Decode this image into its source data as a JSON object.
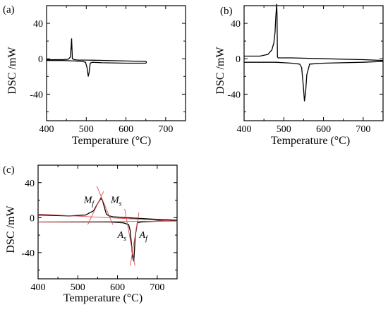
{
  "chart_data": [
    {
      "type": "line",
      "panel_label": "(a)",
      "xlabel": "Temperature (°C)",
      "ylabel": "DSC /mW",
      "xlim": [
        400,
        750
      ],
      "ylim": [
        -70,
        60
      ],
      "xticks": [
        400,
        500,
        600,
        700
      ],
      "yticks": [
        -40,
        0,
        40
      ],
      "series": [
        {
          "x": [
            400,
            440,
            455,
            460,
            462,
            463,
            465,
            470,
            480,
            500,
            550,
            600,
            650,
            652
          ],
          "y": [
            -1,
            -1,
            -0.5,
            2,
            14,
            23,
            0,
            -1,
            -1.5,
            -1.5,
            -2,
            -2.5,
            -3,
            -4
          ]
        },
        {
          "x": [
            652,
            650,
            600,
            540,
            515,
            510,
            507,
            505,
            502,
            498,
            490,
            470,
            440,
            400
          ],
          "y": [
            -4,
            -5,
            -5,
            -4.5,
            -4,
            -5,
            -16,
            -20,
            -10,
            -4,
            -3,
            -2.5,
            -2,
            -2
          ]
        }
      ],
      "annotations": []
    },
    {
      "type": "line",
      "panel_label": "(b)",
      "xlabel": "Temperature (°C)",
      "ylabel": "DSC /mW",
      "xlim": [
        400,
        750
      ],
      "ylim": [
        -70,
        60
      ],
      "xticks": [
        400,
        500,
        600,
        700
      ],
      "yticks": [
        -40,
        0,
        40
      ],
      "series": [
        {
          "x": [
            400,
            440,
            460,
            470,
            475,
            478,
            480,
            482,
            483,
            484,
            486,
            490,
            520,
            600,
            700,
            750
          ],
          "y": [
            3,
            3,
            5,
            10,
            18,
            30,
            48,
            62,
            50,
            2,
            1,
            1,
            1,
            0,
            -1,
            -2
          ]
        },
        {
          "x": [
            750,
            700,
            600,
            565,
            558,
            555,
            552,
            549,
            545,
            540,
            520,
            480,
            440,
            400
          ],
          "y": [
            -3,
            -4,
            -5,
            -6,
            -18,
            -38,
            -48,
            -30,
            -10,
            -6,
            -5,
            -4,
            -4,
            -4
          ]
        }
      ],
      "annotations": []
    },
    {
      "type": "line",
      "panel_label": "(c)",
      "xlabel": "Temperature (°C)",
      "ylabel": "DSC /mW",
      "xlim": [
        400,
        750
      ],
      "ylim": [
        -70,
        60
      ],
      "xticks": [
        400,
        500,
        600,
        700
      ],
      "yticks": [
        -40,
        0,
        40
      ],
      "series": [
        {
          "x": [
            400,
            480,
            520,
            540,
            550,
            558,
            562,
            568,
            572,
            578,
            590,
            620,
            700,
            750
          ],
          "y": [
            3,
            2,
            3,
            8,
            16,
            22,
            20,
            10,
            4,
            2,
            1,
            0,
            -2,
            -3
          ]
        },
        {
          "x": [
            750,
            700,
            660,
            650,
            645,
            641,
            638,
            635,
            632,
            628,
            615,
            580,
            500,
            400
          ],
          "y": [
            -3,
            -4,
            -5,
            -6,
            -20,
            -50,
            -45,
            -30,
            -15,
            -8,
            -6,
            -5,
            -5,
            -5
          ]
        }
      ],
      "annotations": [
        {
          "base": "M",
          "sub": "f",
          "x": 515,
          "y": 17
        },
        {
          "base": "M",
          "sub": "s",
          "x": 583,
          "y": 17
        },
        {
          "base": "A",
          "sub": "s",
          "x": 600,
          "y": -23
        },
        {
          "base": "A",
          "sub": "f",
          "x": 655,
          "y": -23
        }
      ]
    }
  ]
}
